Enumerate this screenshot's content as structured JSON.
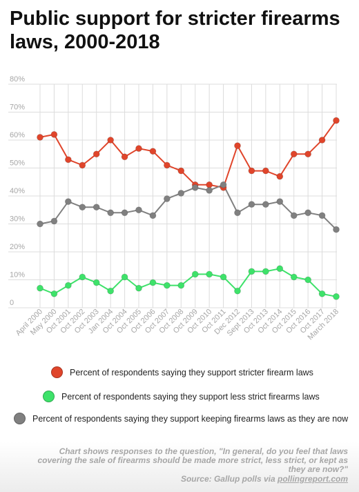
{
  "title": "Public support for stricter firearms laws, 2000-2018",
  "chart_data": {
    "type": "line",
    "categories": [
      "April 2000",
      "May 2000",
      "Oct 2001",
      "Oct 2002",
      "Oct 2003",
      "Jan 2004",
      "Oct 2004",
      "Oct 2005",
      "Oct 2006",
      "Oct 2007",
      "Oct 2008",
      "Oct 2009",
      "Oct 2010",
      "Oct 2011",
      "Dec 2012",
      "Sept 2013",
      "Oct 2013",
      "Oct 2014",
      "Oct 2015",
      "Oct 2016",
      "Oct 2017",
      "March 2018"
    ],
    "series": [
      {
        "name": "Percent of respondents saying they support stricter firearm laws",
        "color": "#e0452b",
        "values": [
          61,
          62,
          53,
          51,
          55,
          60,
          54,
          57,
          56,
          51,
          49,
          44,
          44,
          43,
          58,
          49,
          49,
          47,
          55,
          55,
          60,
          67
        ]
      },
      {
        "name": "Percent of respondents saying they support less strict firearms laws",
        "color": "#3ee26a",
        "values": [
          7,
          5,
          8,
          11,
          9,
          6,
          11,
          7,
          9,
          8,
          8,
          12,
          12,
          11,
          6,
          13,
          13,
          14,
          11,
          10,
          5,
          4
        ]
      },
      {
        "name": "Percent of respondents saying they support keeping firearms laws as they are now",
        "color": "#808080",
        "values": [
          30,
          31,
          38,
          36,
          36,
          34,
          34,
          35,
          33,
          39,
          41,
          43,
          42,
          44,
          34,
          37,
          37,
          38,
          33,
          34,
          33,
          28
        ]
      }
    ],
    "y_ticks": [
      "0",
      "10%",
      "20%",
      "30%",
      "40%",
      "50%",
      "60%",
      "70%",
      "80%"
    ],
    "ylim": [
      0,
      80
    ],
    "grid": true,
    "legend_position": "bottom"
  },
  "footer": {
    "note": "Chart shows responses to the question, \"In general, do you feel that laws covering the sale of firearms should be made more strict, less strict, or kept as they are now?\"",
    "source_prefix": "Source: Gallup polls via ",
    "source_link": "pollingreport.com"
  }
}
